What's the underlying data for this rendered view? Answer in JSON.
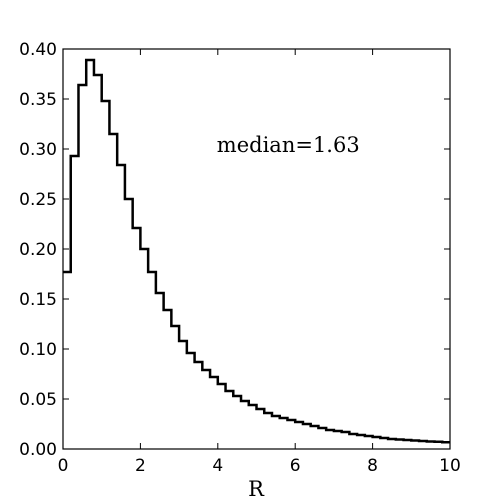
{
  "chart_data": {
    "type": "line",
    "style": "step",
    "xlabel": "R",
    "ylabel": "",
    "xlim": [
      0,
      10
    ],
    "ylim": [
      0,
      0.4
    ],
    "xticks": [
      0,
      2,
      4,
      6,
      8,
      10
    ],
    "xtick_labels": [
      "0",
      "2",
      "4",
      "6",
      "8",
      "10"
    ],
    "yticks": [
      0,
      0.05,
      0.1,
      0.15,
      0.2,
      0.25,
      0.3,
      0.35,
      0.4
    ],
    "ytick_labels": [
      "0.00",
      "0.05",
      "0.10",
      "0.15",
      "0.20",
      "0.25",
      "0.30",
      "0.35",
      "0.40"
    ],
    "grid": false,
    "annotation": {
      "text": "median=1.63",
      "x": 4.0,
      "y": 0.305
    },
    "bin_edges": [
      0,
      0.2,
      0.4,
      0.6,
      0.8,
      1.0,
      1.2,
      1.4,
      1.6,
      1.8,
      2.0,
      2.2,
      2.4,
      2.6,
      2.8,
      3.0,
      3.2,
      3.4,
      3.6,
      3.8,
      4.0,
      4.2,
      4.4,
      4.6,
      4.8,
      5.0,
      5.2,
      5.4,
      5.6,
      5.8,
      6.0,
      6.2,
      6.4,
      6.6,
      6.8,
      7.0,
      7.2,
      7.4,
      7.6,
      7.8,
      8.0,
      8.2,
      8.4,
      8.6,
      8.8,
      9.0,
      9.2,
      9.4,
      9.6,
      9.8,
      10.0
    ],
    "values": [
      0.177,
      0.293,
      0.364,
      0.389,
      0.374,
      0.348,
      0.315,
      0.284,
      0.25,
      0.221,
      0.2,
      0.177,
      0.156,
      0.139,
      0.123,
      0.108,
      0.096,
      0.087,
      0.079,
      0.072,
      0.065,
      0.058,
      0.053,
      0.048,
      0.044,
      0.04,
      0.036,
      0.033,
      0.031,
      0.029,
      0.027,
      0.025,
      0.023,
      0.021,
      0.019,
      0.018,
      0.017,
      0.015,
      0.014,
      0.013,
      0.012,
      0.011,
      0.01,
      0.0095,
      0.009,
      0.0085,
      0.008,
      0.0075,
      0.0072,
      0.0068
    ]
  }
}
